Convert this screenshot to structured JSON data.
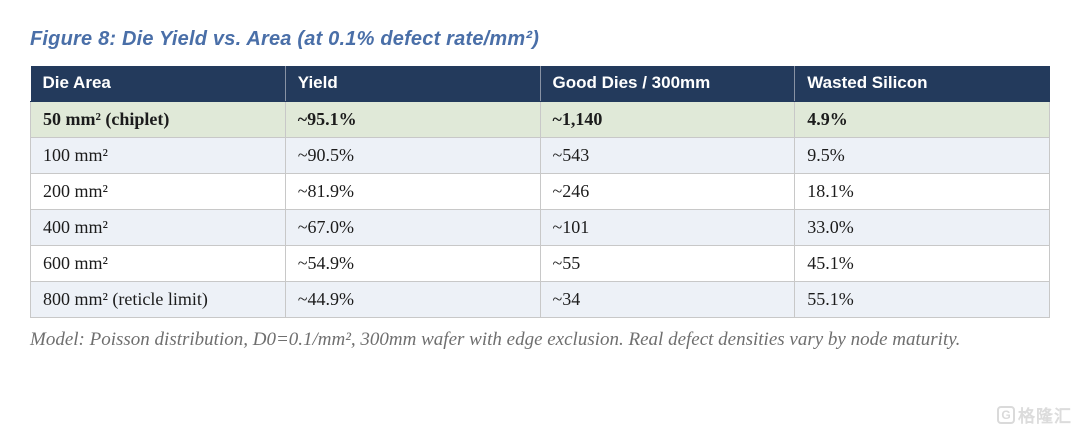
{
  "figure": {
    "title": "Figure 8: Die Yield vs. Area (at 0.1% defect rate/mm²)",
    "title_color": "#4a6fa8"
  },
  "table": {
    "columns": [
      "Die Area",
      "Yield",
      "Good Dies / 300mm",
      "Wasted Silicon"
    ],
    "rows": [
      [
        "50 mm² (chiplet)",
        "~95.1%",
        "~1,140",
        "4.9%"
      ],
      [
        "100 mm²",
        "~90.5%",
        "~543",
        "9.5%"
      ],
      [
        "200 mm²",
        "~81.9%",
        "~246",
        "18.1%"
      ],
      [
        "400 mm²",
        "~67.0%",
        "~101",
        "33.0%"
      ],
      [
        "600 mm²",
        "~54.9%",
        "~55",
        "45.1%"
      ],
      [
        "800 mm² (reticle limit)",
        "~44.9%",
        "~34",
        "55.1%"
      ]
    ],
    "highlight_row_index": 0,
    "colors": {
      "header_bg": "#233a5c",
      "header_text": "#ffffff",
      "highlight_row_bg": "#e0e9d8",
      "alt_row_bg": "#edf1f7",
      "border": "#c8c8c8"
    }
  },
  "note": {
    "text": "Model: Poisson distribution, D0=0.1/mm², 300mm wafer with edge exclusion. Real defect densities vary by node maturity."
  },
  "watermark": {
    "logo": "G",
    "text": "格隆汇"
  }
}
